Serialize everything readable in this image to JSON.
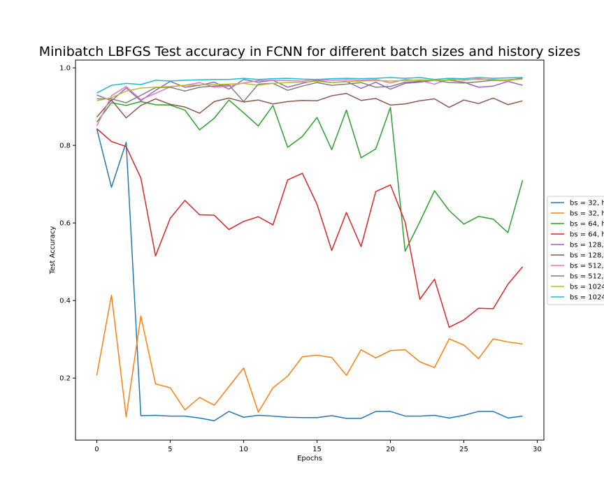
{
  "chart_data": {
    "type": "line",
    "title": "Minibatch LBFGS Test accuracy in FCNN for different batch sizes and history sizes",
    "xlabel": "Epochs",
    "ylabel": "Test Accuracy",
    "xlim": [
      -1.45,
      30.45
    ],
    "ylim": [
      0.04,
      1.02
    ],
    "xticks": [
      0,
      5,
      10,
      15,
      20,
      25,
      30
    ],
    "yticks": [
      0.2,
      0.4,
      0.6,
      0.8,
      1.0
    ],
    "ytick_labels": [
      "0.2",
      "0.4",
      "0.6",
      "0.8",
      "1.0"
    ],
    "grid": false,
    "legend_position": "right (outside, partially clipped)",
    "x": [
      0,
      1,
      2,
      3,
      4,
      5,
      6,
      7,
      8,
      9,
      10,
      11,
      12,
      13,
      14,
      15,
      16,
      17,
      18,
      19,
      20,
      21,
      22,
      23,
      24,
      25,
      26,
      27,
      28,
      29
    ],
    "series": [
      {
        "name": "bs = 32, h",
        "color": "#1f77b4",
        "values": [
          0.843,
          0.692,
          0.808,
          0.103,
          0.104,
          0.102,
          0.102,
          0.097,
          0.09,
          0.114,
          0.099,
          0.104,
          0.102,
          0.099,
          0.098,
          0.098,
          0.103,
          0.096,
          0.096,
          0.114,
          0.114,
          0.102,
          0.102,
          0.104,
          0.097,
          0.104,
          0.114,
          0.114,
          0.097,
          0.102
        ]
      },
      {
        "name": "bs = 32, h",
        "color": "#ff7f0e",
        "values": [
          0.207,
          0.414,
          0.1,
          0.36,
          0.185,
          0.175,
          0.118,
          0.15,
          0.13,
          0.178,
          0.226,
          0.112,
          0.175,
          0.205,
          0.255,
          0.259,
          0.253,
          0.207,
          0.273,
          0.252,
          0.271,
          0.273,
          0.242,
          0.227,
          0.301,
          0.285,
          0.25,
          0.301,
          0.293,
          0.288
        ]
      },
      {
        "name": "bs = 64, h",
        "color": "#2ca02c",
        "values": [
          0.86,
          0.91,
          0.903,
          0.913,
          0.905,
          0.904,
          0.891,
          0.84,
          0.87,
          0.917,
          0.884,
          0.85,
          0.903,
          0.795,
          0.823,
          0.872,
          0.789,
          0.891,
          0.768,
          0.791,
          0.898,
          0.527,
          0.603,
          0.683,
          0.632,
          0.597,
          0.617,
          0.61,
          0.575,
          0.71
        ]
      },
      {
        "name": "bs = 64, h",
        "color": "#d62728",
        "values": [
          0.843,
          0.81,
          0.797,
          0.716,
          0.515,
          0.612,
          0.658,
          0.621,
          0.62,
          0.583,
          0.604,
          0.616,
          0.595,
          0.711,
          0.728,
          0.648,
          0.529,
          0.627,
          0.539,
          0.681,
          0.698,
          0.602,
          0.403,
          0.455,
          0.331,
          0.35,
          0.38,
          0.379,
          0.442,
          0.487
        ]
      },
      {
        "name": "bs = 128,",
        "color": "#9467bd",
        "values": [
          0.93,
          0.915,
          0.948,
          0.915,
          0.942,
          0.965,
          0.95,
          0.955,
          0.963,
          0.945,
          0.97,
          0.963,
          0.968,
          0.95,
          0.96,
          0.968,
          0.962,
          0.965,
          0.947,
          0.963,
          0.945,
          0.96,
          0.963,
          0.968,
          0.968,
          0.963,
          0.95,
          0.953,
          0.965,
          0.955
        ]
      },
      {
        "name": "bs = 128,",
        "color": "#8c564b",
        "values": [
          0.873,
          0.917,
          0.871,
          0.903,
          0.92,
          0.906,
          0.899,
          0.883,
          0.913,
          0.922,
          0.912,
          0.917,
          0.907,
          0.913,
          0.916,
          0.915,
          0.928,
          0.934,
          0.916,
          0.921,
          0.904,
          0.907,
          0.915,
          0.92,
          0.898,
          0.917,
          0.908,
          0.922,
          0.905,
          0.915
        ]
      },
      {
        "name": "bs = 512,",
        "color": "#e377c2",
        "values": [
          0.85,
          0.928,
          0.952,
          0.918,
          0.934,
          0.951,
          0.955,
          0.962,
          0.95,
          0.953,
          0.961,
          0.967,
          0.968,
          0.967,
          0.966,
          0.97,
          0.968,
          0.969,
          0.968,
          0.97,
          0.961,
          0.97,
          0.967,
          0.958,
          0.971,
          0.968,
          0.972,
          0.968,
          0.966,
          0.975
        ]
      },
      {
        "name": "bs = 512,",
        "color": "#7f7f7f",
        "values": [
          0.92,
          0.92,
          0.91,
          0.929,
          0.949,
          0.95,
          0.94,
          0.95,
          0.953,
          0.956,
          0.913,
          0.958,
          0.96,
          0.942,
          0.953,
          0.962,
          0.955,
          0.958,
          0.962,
          0.95,
          0.952,
          0.963,
          0.965,
          0.968,
          0.962,
          0.961,
          0.964,
          0.968,
          0.969,
          0.972
        ]
      },
      {
        "name": "bs = 1024",
        "color": "#bcbd22",
        "values": [
          0.915,
          0.923,
          0.94,
          0.948,
          0.95,
          0.952,
          0.955,
          0.956,
          0.957,
          0.958,
          0.96,
          0.955,
          0.96,
          0.962,
          0.963,
          0.965,
          0.962,
          0.964,
          0.966,
          0.967,
          0.966,
          0.967,
          0.969,
          0.968,
          0.968,
          0.97,
          0.97,
          0.97,
          0.968,
          0.971
        ]
      },
      {
        "name": "bs = 1024",
        "color": "#17becf",
        "values": [
          0.935,
          0.955,
          0.96,
          0.957,
          0.968,
          0.966,
          0.968,
          0.969,
          0.97,
          0.97,
          0.973,
          0.97,
          0.972,
          0.973,
          0.971,
          0.97,
          0.972,
          0.973,
          0.972,
          0.973,
          0.975,
          0.973,
          0.975,
          0.97,
          0.973,
          0.972,
          0.975,
          0.973,
          0.974,
          0.975
        ]
      }
    ]
  }
}
